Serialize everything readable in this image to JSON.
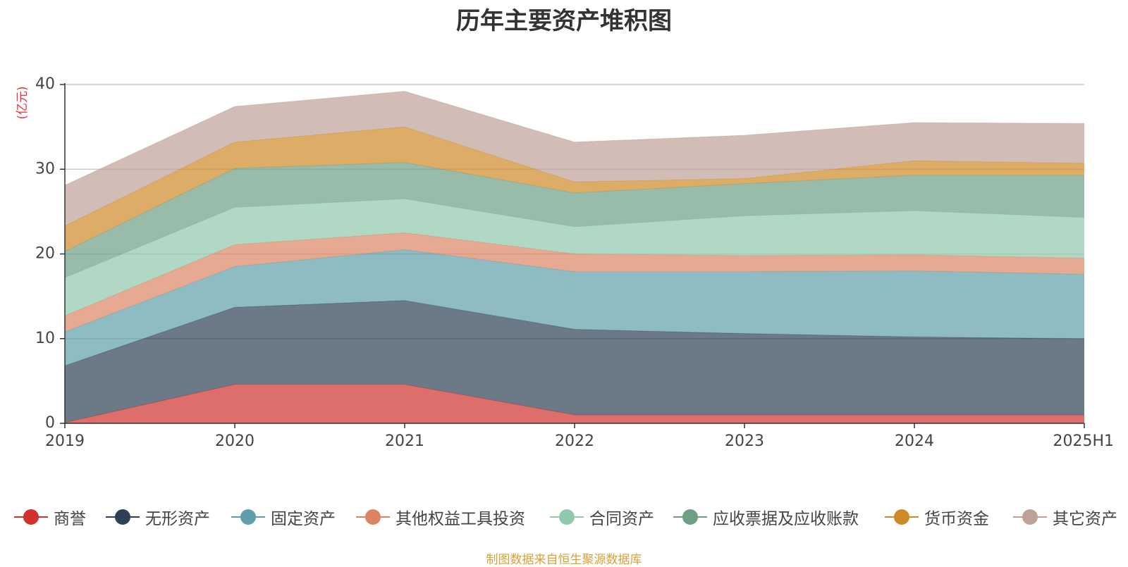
{
  "source_note": "制图数据来自恒生聚源数据库",
  "chart_data": {
    "type": "area",
    "stacked": true,
    "title": "历年主要资产堆积图",
    "ylabel": "(亿元)",
    "xlabel": "",
    "categories": [
      "2019",
      "2020",
      "2021",
      "2022",
      "2023",
      "2024",
      "2025H1"
    ],
    "ylim": [
      0,
      40
    ],
    "yticks": [
      0,
      10,
      20,
      30,
      40
    ],
    "grid": true,
    "legend_position": "bottom",
    "series": [
      {
        "name": "商誉",
        "color": "#d0312d",
        "values": [
          0.1,
          4.6,
          4.6,
          1.0,
          1.0,
          1.0,
          1.0
        ]
      },
      {
        "name": "无形资产",
        "color": "#2e4053",
        "values": [
          6.7,
          9.1,
          9.9,
          10.1,
          9.6,
          9.2,
          9.0
        ]
      },
      {
        "name": "固定资产",
        "color": "#5f9ea8",
        "values": [
          4.0,
          4.8,
          6.0,
          6.8,
          7.3,
          7.8,
          7.6
        ]
      },
      {
        "name": "其他权益工具投资",
        "color": "#db8463",
        "values": [
          1.9,
          2.6,
          2.0,
          2.1,
          1.9,
          1.9,
          1.9
        ]
      },
      {
        "name": "合同资产",
        "color": "#90c8ad",
        "values": [
          4.5,
          4.4,
          4.0,
          3.2,
          4.7,
          5.2,
          4.8
        ]
      },
      {
        "name": "应收票据及应收账款",
        "color": "#6e9e84",
        "values": [
          3.1,
          4.6,
          4.3,
          4.0,
          3.8,
          4.2,
          5.0
        ]
      },
      {
        "name": "货币资金",
        "color": "#cf8a28",
        "values": [
          3.0,
          3.1,
          4.2,
          1.3,
          0.6,
          1.7,
          1.4
        ]
      },
      {
        "name": "其它资产",
        "color": "#bfa197",
        "values": [
          4.8,
          4.2,
          4.2,
          4.7,
          5.1,
          4.5,
          4.7
        ]
      }
    ]
  }
}
